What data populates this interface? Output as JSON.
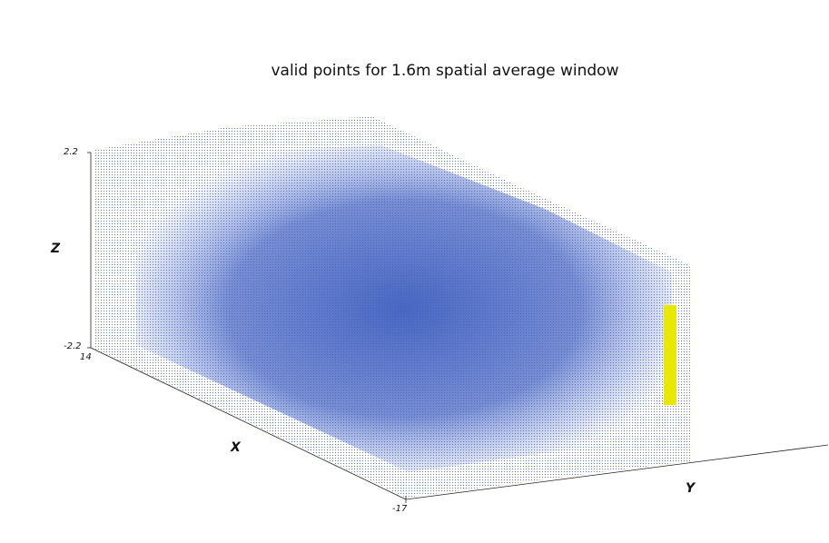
{
  "chart_data": {
    "type": "scatter",
    "title": "valid points for 1.6m spatial average window",
    "xlabel": "X",
    "ylabel": "Y",
    "zlabel": "Z",
    "z_ticks": [
      "2.2",
      "-2.2"
    ],
    "x_ticks": [
      "14",
      "-17"
    ],
    "zlim": [
      -2.2,
      2.2
    ],
    "xlim": [
      -17,
      14
    ],
    "grid": false,
    "series": [
      {
        "color": "#3f5fbf"
      },
      {
        "color": "#e8e800"
      }
    ]
  }
}
